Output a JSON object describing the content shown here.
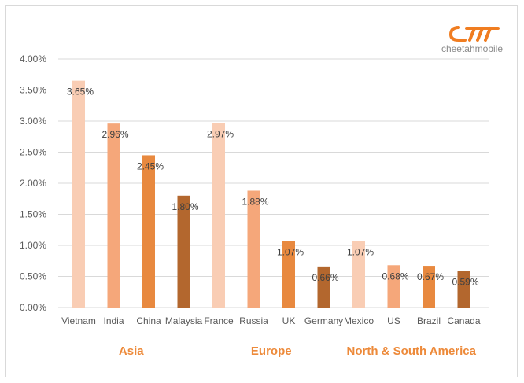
{
  "logo": {
    "mark_color": "#f07d21",
    "text": "cheetahmobile"
  },
  "chart_data": {
    "type": "bar",
    "title": "",
    "xlabel": "",
    "ylabel": "",
    "ylim": [
      0,
      4
    ],
    "y_unit": "%",
    "y_ticks": [
      "0.00%",
      "0.50%",
      "1.00%",
      "1.50%",
      "2.00%",
      "2.50%",
      "3.00%",
      "3.50%",
      "4.00%"
    ],
    "grid": true,
    "groups": [
      {
        "name": "Asia",
        "categories": [
          "Vietnam",
          "India",
          "China",
          "Malaysia"
        ],
        "values": [
          3.65,
          2.96,
          2.45,
          1.8
        ],
        "labels": [
          "3.65%",
          "2.96%",
          "2.45%",
          "1.80%"
        ]
      },
      {
        "name": "Europe",
        "categories": [
          "France",
          "Russia",
          "UK",
          "Germany"
        ],
        "values": [
          2.97,
          1.88,
          1.07,
          0.66
        ],
        "labels": [
          "2.97%",
          "1.88%",
          "1.07%",
          "0.66%"
        ]
      },
      {
        "name": "North & South America",
        "categories": [
          "Mexico",
          "US",
          "Brazil",
          "Canada"
        ],
        "values": [
          1.07,
          0.68,
          0.67,
          0.59
        ],
        "labels": [
          "1.07%",
          "0.68%",
          "0.67%",
          "0.59%"
        ]
      }
    ],
    "bar_colors": [
      "#f9cdb4",
      "#f5a77a",
      "#e8893f",
      "#b3672e"
    ],
    "region_label_color": "#ed8a3a",
    "gridline_color": "#d9d9d9"
  }
}
